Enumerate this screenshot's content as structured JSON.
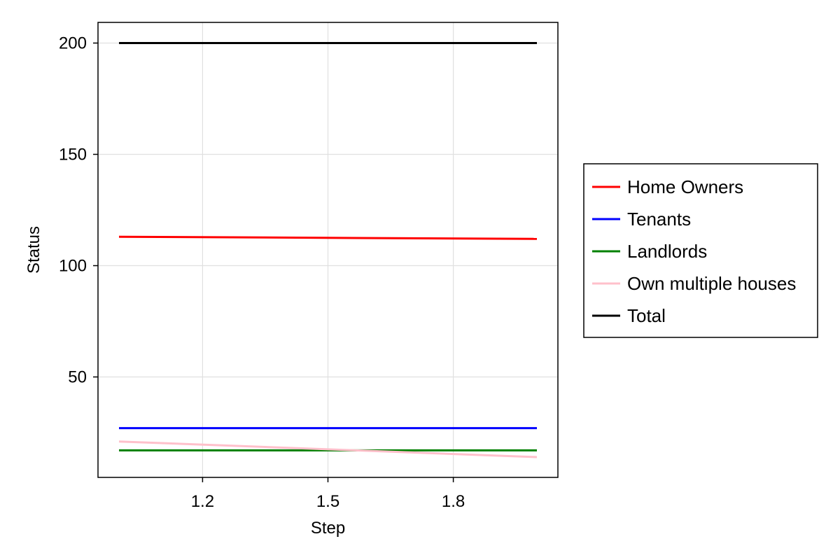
{
  "chart_data": {
    "type": "line",
    "xlabel": "Step",
    "ylabel": "Status",
    "xlim": [
      1.0,
      2.0
    ],
    "ylim": [
      5,
      210
    ],
    "x_ticks": [
      1.2,
      1.5,
      1.8
    ],
    "x_tick_labels": [
      "1.2",
      "1.5",
      "1.8"
    ],
    "y_ticks": [
      50,
      100,
      150,
      200
    ],
    "y_tick_labels": [
      "50",
      "100",
      "150",
      "200"
    ],
    "grid": true,
    "legend_position": "right",
    "series": [
      {
        "name": "Home Owners",
        "color": "#ff0000",
        "x": [
          1,
          2
        ],
        "y": [
          113,
          112
        ]
      },
      {
        "name": "Tenants",
        "color": "#0000ff",
        "x": [
          1,
          2
        ],
        "y": [
          27,
          27
        ]
      },
      {
        "name": "Landlords",
        "color": "#008000",
        "x": [
          1,
          2
        ],
        "y": [
          17,
          17
        ]
      },
      {
        "name": "Own multiple houses",
        "color": "#ffc0cb",
        "x": [
          1,
          2
        ],
        "y": [
          21,
          14
        ]
      },
      {
        "name": "Total",
        "color": "#000000",
        "x": [
          1,
          2
        ],
        "y": [
          200,
          200
        ]
      }
    ]
  }
}
